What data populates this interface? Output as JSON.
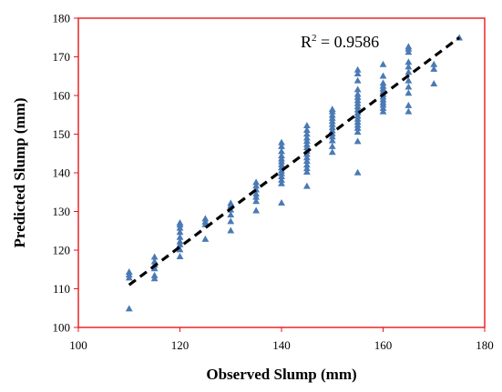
{
  "chart_data": {
    "type": "scatter",
    "title": "",
    "xlabel": "Observed Slump (mm)",
    "ylabel": "Predicted Slump (mm)",
    "xlim": [
      100,
      180
    ],
    "ylim": [
      100,
      180
    ],
    "xticks": [
      100,
      120,
      140,
      160,
      180
    ],
    "yticks": [
      100,
      110,
      120,
      130,
      140,
      150,
      160,
      170,
      180
    ],
    "grid": false,
    "legend": "none",
    "colors": {
      "frame": "#e8161b",
      "marker": "#4a7ab5",
      "trendline": "#000000"
    },
    "annotation": {
      "r2_prefix": "R",
      "r2_sup": "2",
      "r2_suffix": " = 0.9586"
    },
    "trendline": {
      "x": [
        110,
        175
      ],
      "y": [
        111,
        175
      ],
      "style": "dashed"
    },
    "series": [
      {
        "marker": "triangle",
        "points": [
          [
            110,
            104.8
          ],
          [
            110,
            112.8
          ],
          [
            110,
            113.6
          ],
          [
            110,
            114.3
          ],
          [
            115,
            112.6
          ],
          [
            115,
            113.4
          ],
          [
            115,
            115.2
          ],
          [
            115,
            116.1
          ],
          [
            115,
            117.0
          ],
          [
            115,
            118.2
          ],
          [
            120,
            118.3
          ],
          [
            120,
            120.1
          ],
          [
            120,
            121.4
          ],
          [
            120,
            122.2
          ],
          [
            120,
            123.3
          ],
          [
            120,
            124.6
          ],
          [
            120,
            125.7
          ],
          [
            120,
            126.5
          ],
          [
            120,
            127.0
          ],
          [
            125,
            122.8
          ],
          [
            125,
            126.6
          ],
          [
            125,
            127.3
          ],
          [
            125,
            128.1
          ],
          [
            130,
            125.0
          ],
          [
            130,
            127.4
          ],
          [
            130,
            129.1
          ],
          [
            130,
            130.4
          ],
          [
            130,
            131.4
          ],
          [
            130,
            132.1
          ],
          [
            135,
            130.2
          ],
          [
            135,
            132.6
          ],
          [
            135,
            133.7
          ],
          [
            135,
            134.5
          ],
          [
            135,
            135.6
          ],
          [
            135,
            136.6
          ],
          [
            135,
            137.5
          ],
          [
            140,
            132.2
          ],
          [
            140,
            137.2
          ],
          [
            140,
            138.1
          ],
          [
            140,
            139.0
          ],
          [
            140,
            139.8
          ],
          [
            140,
            140.5
          ],
          [
            140,
            141.3
          ],
          [
            140,
            142.1
          ],
          [
            140,
            142.9
          ],
          [
            140,
            143.6
          ],
          [
            140,
            144.4
          ],
          [
            140,
            145.5
          ],
          [
            140,
            146.8
          ],
          [
            140,
            147.8
          ],
          [
            145,
            136.5
          ],
          [
            145,
            140.2
          ],
          [
            145,
            141.1
          ],
          [
            145,
            142.0
          ],
          [
            145,
            143.0
          ],
          [
            145,
            143.9
          ],
          [
            145,
            144.8
          ],
          [
            145,
            145.6
          ],
          [
            145,
            146.5
          ],
          [
            145,
            147.3
          ],
          [
            145,
            148.2
          ],
          [
            145,
            149.0
          ],
          [
            145,
            150.0
          ],
          [
            145,
            151.0
          ],
          [
            145,
            152.2
          ],
          [
            150,
            145.3
          ],
          [
            150,
            146.8
          ],
          [
            150,
            148.3
          ],
          [
            150,
            149.3
          ],
          [
            150,
            150.1
          ],
          [
            150,
            150.9
          ],
          [
            150,
            151.7
          ],
          [
            150,
            152.5
          ],
          [
            150,
            153.3
          ],
          [
            150,
            154.1
          ],
          [
            150,
            154.9
          ],
          [
            150,
            155.8
          ],
          [
            150,
            156.4
          ],
          [
            155,
            140.0
          ],
          [
            155,
            148.1
          ],
          [
            155,
            150.5
          ],
          [
            155,
            151.5
          ],
          [
            155,
            152.3
          ],
          [
            155,
            153.1
          ],
          [
            155,
            153.9
          ],
          [
            155,
            154.7
          ],
          [
            155,
            155.5
          ],
          [
            155,
            156.3
          ],
          [
            155,
            157.1
          ],
          [
            155,
            157.9
          ],
          [
            155,
            158.7
          ],
          [
            155,
            159.5
          ],
          [
            155,
            160.3
          ],
          [
            155,
            161.5
          ],
          [
            155,
            163.8
          ],
          [
            155,
            165.6
          ],
          [
            155,
            166.6
          ],
          [
            160,
            155.8
          ],
          [
            160,
            156.7
          ],
          [
            160,
            157.5
          ],
          [
            160,
            158.2
          ],
          [
            160,
            158.9
          ],
          [
            160,
            159.6
          ],
          [
            160,
            160.3
          ],
          [
            160,
            161.0
          ],
          [
            160,
            161.7
          ],
          [
            160,
            162.4
          ],
          [
            160,
            163.2
          ],
          [
            160,
            165.0
          ],
          [
            160,
            168.0
          ],
          [
            165,
            155.8
          ],
          [
            165,
            157.4
          ],
          [
            165,
            160.6
          ],
          [
            165,
            162.2
          ],
          [
            165,
            163.8
          ],
          [
            165,
            166.0
          ],
          [
            165,
            167.4
          ],
          [
            165,
            168.6
          ],
          [
            165,
            171.2
          ],
          [
            165,
            172.0
          ],
          [
            165,
            172.6
          ],
          [
            170,
            163.0
          ],
          [
            170,
            166.8
          ],
          [
            170,
            168.0
          ],
          [
            175,
            174.9
          ]
        ]
      }
    ]
  }
}
